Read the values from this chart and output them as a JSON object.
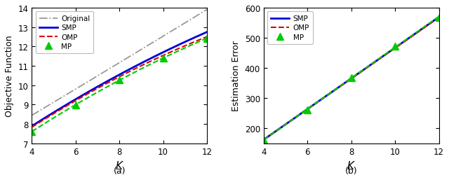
{
  "left": {
    "K": [
      4,
      6,
      8,
      10,
      12
    ],
    "original": [
      8.45,
      9.8,
      11.15,
      12.55,
      13.9
    ],
    "smp": [
      7.92,
      9.22,
      10.55,
      11.75,
      12.72
    ],
    "omp": [
      7.88,
      9.12,
      10.42,
      11.65,
      12.45
    ],
    "mp": [
      7.62,
      8.97,
      10.28,
      11.4,
      12.42
    ],
    "ylim": [
      7,
      14
    ],
    "yticks": [
      7,
      8,
      9,
      10,
      11,
      12,
      13,
      14
    ],
    "ylabel": "Objective Function",
    "title": "(a)"
  },
  "right": {
    "K": [
      4,
      6,
      8,
      10,
      12
    ],
    "smp": [
      162,
      262,
      367,
      472,
      565
    ],
    "omp": [
      162,
      261,
      366,
      471,
      564
    ],
    "mp": [
      162,
      262,
      367,
      472,
      568
    ],
    "ylim": [
      150,
      600
    ],
    "yticks": [
      200,
      300,
      400,
      500,
      600
    ],
    "ylabel": "Estimation Error",
    "title": "(b)"
  },
  "colors": {
    "original": "#999999",
    "smp": "#0000dd",
    "omp": "#dd0000",
    "mp": "#00cc00"
  },
  "xticks": [
    4,
    6,
    8,
    10,
    12
  ]
}
